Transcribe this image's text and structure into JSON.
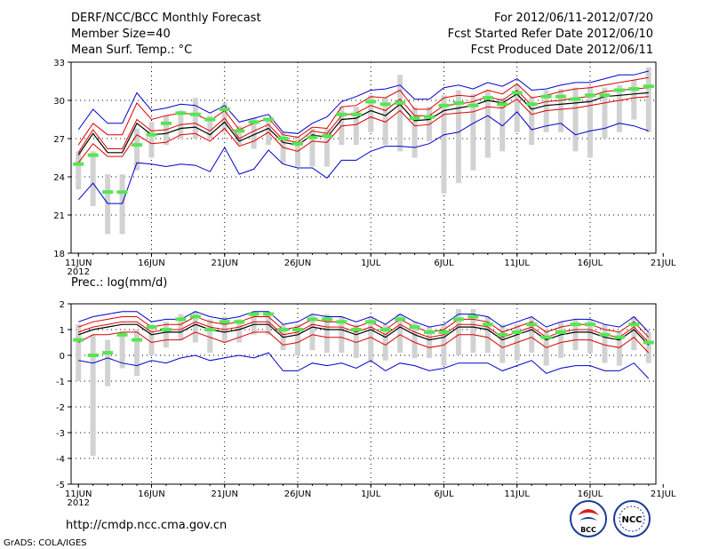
{
  "header": {
    "title": "DERF/NCC/BCC Monthly Forecast",
    "member_size": "Member Size=40",
    "variable": "Mean Surf. Temp.: °C",
    "period": "For 2012/06/11-2012/07/20",
    "start_date": "Fcst Started Refer Date 2012/06/10",
    "produced_date": "Fcst Produced Date 2012/06/11"
  },
  "footer": {
    "url": "http://cmdp.ncc.cma.gov.cn",
    "credit": "GrADS: COLA/IGES",
    "logo_bcc": "BCC",
    "logo_ncc": "NCC"
  },
  "colors": {
    "box": "#d2d2d2",
    "mean": "#55e650",
    "envelope": "#0000cc",
    "spread": "#dd0000",
    "ensemble": "#000000",
    "grid": "#000000"
  },
  "chart_data": [
    {
      "type": "box",
      "title": "Mean Surf. Temp.: °C",
      "ylabel": "°C",
      "ylim": [
        18,
        33
      ],
      "yticks": [
        18,
        21,
        24,
        27,
        30,
        33
      ],
      "xlim": [
        0,
        40
      ],
      "xticks": [
        {
          "pos": 0,
          "label": "11JUN"
        },
        {
          "pos": 5,
          "label": "16JUN"
        },
        {
          "pos": 10,
          "label": "21JUN"
        },
        {
          "pos": 15,
          "label": "26JUN"
        },
        {
          "pos": 20,
          "label": "1JUL"
        },
        {
          "pos": 25,
          "label": "6JUL"
        },
        {
          "pos": 30,
          "label": "11JUL"
        },
        {
          "pos": 35,
          "label": "16JUL"
        },
        {
          "pos": 40,
          "label": "21JUL"
        }
      ],
      "year_label": "2012",
      "grid": true,
      "days": [
        0,
        1,
        2,
        3,
        4,
        5,
        6,
        7,
        8,
        9,
        10,
        11,
        12,
        13,
        14,
        15,
        16,
        17,
        18,
        19,
        20,
        21,
        22,
        23,
        24,
        25,
        26,
        27,
        28,
        29,
        30,
        31,
        32,
        33,
        34,
        35,
        36,
        37,
        38,
        39
      ],
      "series": [
        {
          "name": "observation mean",
          "values": [
            25.0,
            25.7,
            22.8,
            22.8,
            26.5,
            27.3,
            28.2,
            29.0,
            28.9,
            28.5,
            29.3,
            27.6,
            28.3,
            28.5,
            27.0,
            26.6,
            27.1,
            27.2,
            28.9,
            28.9,
            29.9,
            29.7,
            29.8,
            28.6,
            28.7,
            29.6,
            29.8,
            29.6,
            30.2,
            29.7,
            30.6,
            29.7,
            30.3,
            30.3,
            30.1,
            30.4,
            30.4,
            30.8,
            30.9,
            31.1
          ]
        },
        {
          "name": "box top",
          "values": [
            26.0,
            26.0,
            24.2,
            24.2,
            27.8,
            28.3,
            28.8,
            29.2,
            30.2,
            28.8,
            29.8,
            28.0,
            28.6,
            28.5,
            27.5,
            27.2,
            27.8,
            27.8,
            29.5,
            29.5,
            30.4,
            30.2,
            32.0,
            29.5,
            29.5,
            30.4,
            30.8,
            30.5,
            30.8,
            30.2,
            31.2,
            30.3,
            30.8,
            30.9,
            31.0,
            31.1,
            31.0,
            31.2,
            31.6,
            32.6
          ]
        },
        {
          "name": "box bottom",
          "values": [
            23.0,
            21.7,
            19.5,
            19.5,
            24.5,
            25.5,
            26.5,
            27.0,
            27.0,
            27.0,
            27.5,
            26.5,
            26.2,
            26.5,
            25.0,
            24.8,
            24.8,
            24.8,
            26.5,
            26.5,
            27.5,
            26.5,
            26.0,
            25.5,
            26.8,
            22.7,
            23.5,
            24.5,
            25.5,
            26.0,
            27.5,
            26.5,
            27.5,
            27.5,
            26.0,
            25.5,
            27.0,
            27.5,
            28.5,
            27.5
          ]
        },
        {
          "name": "ensemble max",
          "values": [
            27.7,
            29.3,
            28.2,
            28.2,
            30.6,
            29.2,
            29.4,
            29.7,
            29.6,
            29.0,
            29.6,
            28.3,
            28.6,
            28.9,
            27.5,
            27.4,
            28.2,
            28.7,
            29.9,
            30.3,
            30.8,
            30.9,
            31.2,
            30.1,
            30.1,
            31.0,
            31.2,
            30.9,
            31.4,
            31.1,
            31.7,
            30.8,
            30.9,
            31.2,
            31.4,
            31.4,
            31.7,
            32.0,
            32.0,
            32.3
          ]
        },
        {
          "name": "upper spread",
          "values": [
            26.5,
            28.2,
            27.3,
            27.3,
            29.8,
            28.5,
            28.8,
            29.0,
            28.9,
            28.4,
            29.2,
            27.7,
            28.2,
            28.6,
            27.3,
            27.1,
            27.9,
            27.8,
            29.5,
            29.6,
            30.3,
            30.2,
            30.8,
            29.3,
            29.3,
            30.2,
            30.4,
            30.3,
            30.8,
            30.5,
            31.3,
            30.2,
            30.4,
            30.7,
            30.9,
            31.0,
            31.2,
            31.4,
            31.6,
            31.8
          ]
        },
        {
          "name": "ensemble median",
          "values": [
            25.9,
            27.7,
            26.2,
            26.2,
            28.5,
            27.6,
            27.7,
            28.1,
            28.2,
            27.6,
            28.6,
            27.0,
            27.6,
            28.1,
            26.9,
            26.7,
            27.6,
            27.4,
            28.8,
            29.0,
            29.6,
            29.2,
            30.1,
            28.8,
            28.8,
            29.6,
            29.7,
            29.9,
            30.3,
            30.0,
            30.8,
            29.6,
            29.9,
            30.0,
            30.2,
            30.3,
            30.7,
            30.8,
            30.9,
            31.0
          ]
        },
        {
          "name": "ensemble mean",
          "values": [
            25.7,
            27.4,
            25.9,
            25.9,
            28.2,
            27.3,
            27.4,
            27.8,
            27.9,
            27.3,
            28.3,
            26.8,
            27.3,
            27.8,
            26.7,
            26.5,
            27.3,
            27.1,
            28.5,
            28.6,
            29.2,
            28.8,
            29.7,
            28.4,
            28.5,
            29.2,
            29.4,
            29.6,
            30.0,
            29.8,
            30.5,
            29.3,
            29.6,
            29.7,
            29.8,
            29.9,
            30.3,
            30.4,
            30.5,
            30.6
          ]
        },
        {
          "name": "lower spread",
          "values": [
            25.1,
            26.6,
            25.6,
            25.6,
            27.3,
            26.6,
            26.7,
            27.3,
            27.4,
            26.8,
            27.8,
            26.4,
            26.8,
            27.5,
            26.3,
            26.0,
            26.8,
            26.7,
            28.0,
            28.1,
            28.7,
            28.3,
            29.2,
            28.0,
            28.1,
            28.9,
            29.0,
            29.1,
            29.5,
            29.4,
            30.1,
            28.9,
            29.2,
            29.3,
            29.4,
            29.6,
            29.8,
            30.0,
            30.2,
            30.3
          ]
        },
        {
          "name": "ensemble min",
          "values": [
            22.2,
            23.5,
            21.9,
            21.9,
            25.1,
            25.0,
            24.8,
            25.0,
            24.9,
            24.4,
            26.3,
            24.2,
            24.6,
            26.1,
            25.0,
            24.7,
            24.7,
            23.9,
            25.3,
            25.3,
            26.0,
            26.4,
            26.4,
            26.3,
            26.6,
            27.3,
            27.5,
            28.2,
            28.8,
            28.0,
            29.1,
            27.7,
            28.0,
            28.2,
            27.3,
            27.6,
            27.8,
            28.2,
            28.0,
            27.6
          ]
        }
      ]
    },
    {
      "type": "box",
      "title": "Prec.: log(mm/d)",
      "ylabel": "log(mm/d)",
      "ylim": [
        -5,
        2
      ],
      "yticks": [
        -5,
        -4,
        -3,
        -2,
        -1,
        0,
        1,
        2
      ],
      "xlim": [
        0,
        40
      ],
      "xticks": [
        {
          "pos": 0,
          "label": "11JUN"
        },
        {
          "pos": 5,
          "label": "16JUN"
        },
        {
          "pos": 10,
          "label": "21JUN"
        },
        {
          "pos": 15,
          "label": "26JUN"
        },
        {
          "pos": 20,
          "label": "1JUL"
        },
        {
          "pos": 25,
          "label": "6JUL"
        },
        {
          "pos": 30,
          "label": "11JUL"
        },
        {
          "pos": 35,
          "label": "16JUL"
        },
        {
          "pos": 40,
          "label": "21JUL"
        }
      ],
      "year_label": "2012",
      "grid": true,
      "days": [
        0,
        1,
        2,
        3,
        4,
        5,
        6,
        7,
        8,
        9,
        10,
        11,
        12,
        13,
        14,
        15,
        16,
        17,
        18,
        19,
        20,
        21,
        22,
        23,
        24,
        25,
        26,
        27,
        28,
        29,
        30,
        31,
        32,
        33,
        34,
        35,
        36,
        37,
        38,
        39
      ],
      "series": [
        {
          "name": "observation mean",
          "values": [
            0.6,
            0.0,
            0.1,
            0.8,
            0.6,
            1.1,
            1.0,
            1.4,
            1.5,
            1.0,
            1.3,
            1.3,
            1.6,
            1.6,
            1.0,
            1.0,
            1.4,
            1.4,
            1.3,
            1.0,
            1.3,
            1.0,
            1.4,
            1.1,
            0.9,
            0.9,
            1.4,
            1.5,
            1.2,
            0.8,
            0.9,
            1.2,
            0.7,
            0.9,
            1.2,
            1.2,
            0.8,
            0.7,
            1.2,
            0.5
          ]
        },
        {
          "name": "box top",
          "values": [
            1.2,
            0.8,
            0.6,
            0.9,
            1.0,
            1.2,
            1.3,
            1.6,
            1.7,
            1.4,
            1.5,
            1.4,
            1.7,
            1.7,
            1.2,
            1.2,
            1.6,
            1.6,
            1.5,
            1.2,
            1.5,
            1.2,
            1.6,
            1.3,
            1.1,
            1.2,
            1.8,
            1.8,
            1.5,
            1.2,
            1.2,
            1.5,
            1.0,
            1.3,
            1.4,
            1.4,
            1.2,
            0.9,
            1.5,
            0.9
          ]
        },
        {
          "name": "box bottom",
          "values": [
            -1.0,
            -3.9,
            -1.2,
            -0.5,
            -0.8,
            0.0,
            0.3,
            0.6,
            0.5,
            0.1,
            0.5,
            0.5,
            0.8,
            0.8,
            0.2,
            0.0,
            0.2,
            0.1,
            0.1,
            -0.1,
            -0.2,
            -0.2,
            0.1,
            -0.1,
            -0.1,
            -0.4,
            0.0,
            0.1,
            0.1,
            -0.3,
            -0.2,
            0.1,
            -0.4,
            -0.1,
            0.2,
            0.1,
            -0.3,
            -0.4,
            0.2,
            -0.3
          ]
        },
        {
          "name": "ensemble max",
          "values": [
            1.3,
            1.5,
            1.6,
            1.7,
            1.7,
            1.3,
            1.4,
            1.4,
            1.7,
            1.5,
            1.4,
            1.5,
            1.7,
            1.7,
            1.2,
            1.3,
            1.6,
            1.5,
            1.5,
            1.3,
            1.5,
            1.2,
            1.6,
            1.3,
            1.1,
            1.2,
            1.6,
            1.6,
            1.5,
            1.1,
            1.3,
            1.5,
            1.1,
            1.3,
            1.4,
            1.4,
            1.2,
            1.1,
            1.5,
            0.9
          ]
        },
        {
          "name": "upper spread",
          "values": [
            1.1,
            1.3,
            1.4,
            1.5,
            1.5,
            1.1,
            1.2,
            1.2,
            1.5,
            1.3,
            1.2,
            1.3,
            1.5,
            1.5,
            1.0,
            1.1,
            1.4,
            1.3,
            1.3,
            1.1,
            1.3,
            1.0,
            1.4,
            1.1,
            0.9,
            1.0,
            1.4,
            1.4,
            1.3,
            0.9,
            1.1,
            1.3,
            0.9,
            1.1,
            1.2,
            1.2,
            1.0,
            0.9,
            1.3,
            0.7
          ]
        },
        {
          "name": "ensemble median",
          "values": [
            0.9,
            1.1,
            1.2,
            1.3,
            1.3,
            0.9,
            1.0,
            1.0,
            1.3,
            1.1,
            1.0,
            1.1,
            1.3,
            1.3,
            0.8,
            0.9,
            1.2,
            1.1,
            1.1,
            0.9,
            1.1,
            0.8,
            1.2,
            0.9,
            0.7,
            0.8,
            1.2,
            1.2,
            1.1,
            0.7,
            0.9,
            1.1,
            0.7,
            0.9,
            1.0,
            1.0,
            0.8,
            0.7,
            1.1,
            0.5
          ]
        },
        {
          "name": "ensemble mean",
          "values": [
            0.8,
            1.0,
            1.1,
            1.2,
            1.2,
            0.8,
            0.9,
            0.9,
            1.2,
            1.0,
            0.9,
            1.0,
            1.2,
            1.2,
            0.7,
            0.8,
            1.1,
            1.0,
            1.0,
            0.8,
            1.0,
            0.7,
            1.1,
            0.8,
            0.6,
            0.7,
            1.1,
            1.1,
            1.0,
            0.6,
            0.8,
            1.0,
            0.6,
            0.8,
            0.9,
            0.9,
            0.7,
            0.6,
            1.0,
            0.4
          ]
        },
        {
          "name": "lower spread",
          "values": [
            0.5,
            0.8,
            0.8,
            0.9,
            0.9,
            0.5,
            0.6,
            0.6,
            0.9,
            0.7,
            0.5,
            0.7,
            0.9,
            0.9,
            0.4,
            0.5,
            0.8,
            0.7,
            0.7,
            0.5,
            0.7,
            0.4,
            0.8,
            0.5,
            0.3,
            0.4,
            0.8,
            0.8,
            0.7,
            0.3,
            0.5,
            0.7,
            0.3,
            0.5,
            0.6,
            0.6,
            0.4,
            0.3,
            0.7,
            0.1
          ]
        },
        {
          "name": "ensemble min",
          "values": [
            -0.2,
            -0.3,
            -0.1,
            -0.3,
            -0.4,
            -0.2,
            -0.3,
            -0.1,
            0.0,
            -0.2,
            -0.1,
            0.0,
            -0.1,
            0.1,
            -0.6,
            -0.6,
            -0.3,
            -0.4,
            -0.3,
            -0.5,
            -0.2,
            -0.6,
            -0.3,
            -0.4,
            -0.6,
            -0.5,
            -0.3,
            -0.3,
            -0.3,
            -0.6,
            -0.4,
            -0.2,
            -0.7,
            -0.5,
            -0.4,
            -0.4,
            -0.6,
            -0.6,
            -0.3,
            -0.9
          ]
        }
      ]
    }
  ]
}
